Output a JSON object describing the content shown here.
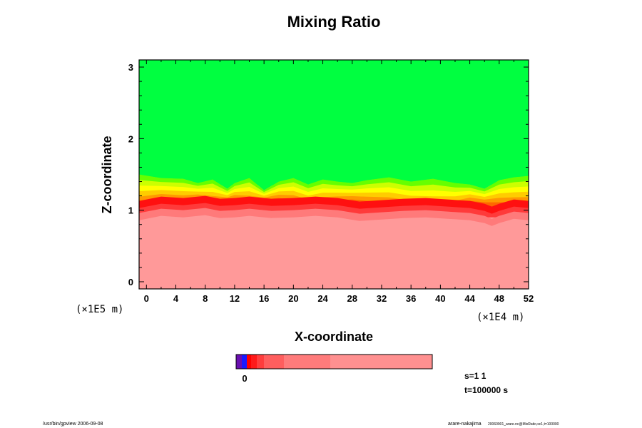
{
  "chart_data": {
    "type": "heatmap",
    "title": "Mixing Ratio",
    "xlabel": "X-coordinate",
    "ylabel": "Z-coordinate",
    "x_unit": "(×1E4 m)",
    "y_unit": "(×1E5 m)",
    "xlim": [
      -1,
      52
    ],
    "ylim": [
      -0.1,
      3.1
    ],
    "x_ticks": [
      "0",
      "4",
      "8",
      "12",
      "16",
      "20",
      "24",
      "28",
      "32",
      "36",
      "40",
      "44",
      "48",
      "52"
    ],
    "y_ticks": [
      "0",
      "1",
      "2",
      "3"
    ],
    "colorbar": {
      "tick_label": "0",
      "colors": [
        "#6a0fb0",
        "#1a1aff",
        "#ff0000",
        "#ff1a1a",
        "#ff3d3d",
        "#ff5e5e",
        "#ff7b7b",
        "#ff9090"
      ]
    },
    "region_colors": {
      "upper": "#00ff40",
      "transition": [
        "#66ff00",
        "#ccff00",
        "#ffff00",
        "#ffcc00",
        "#ff9900",
        "#ff6600"
      ],
      "interface": "#ff1010",
      "lower": "#ff9999"
    },
    "interface_profile": [
      [
        -1,
        1.06
      ],
      [
        2,
        1.12
      ],
      [
        5,
        1.1
      ],
      [
        8,
        1.13
      ],
      [
        10,
        1.09
      ],
      [
        12,
        1.1
      ],
      [
        14,
        1.12
      ],
      [
        17,
        1.09
      ],
      [
        20,
        1.1
      ],
      [
        23,
        1.12
      ],
      [
        26,
        1.1
      ],
      [
        29,
        1.05
      ],
      [
        32,
        1.07
      ],
      [
        35,
        1.09
      ],
      [
        38,
        1.1
      ],
      [
        41,
        1.08
      ],
      [
        44,
        1.06
      ],
      [
        46,
        1.02
      ],
      [
        47,
        0.98
      ],
      [
        48,
        1.02
      ],
      [
        50,
        1.08
      ],
      [
        52,
        1.06
      ]
    ],
    "green_boundary": [
      [
        -1,
        1.5
      ],
      [
        2,
        1.45
      ],
      [
        5,
        1.44
      ],
      [
        7,
        1.38
      ],
      [
        9,
        1.43
      ],
      [
        11,
        1.3
      ],
      [
        12,
        1.38
      ],
      [
        14,
        1.45
      ],
      [
        16,
        1.28
      ],
      [
        18,
        1.4
      ],
      [
        20,
        1.45
      ],
      [
        22,
        1.36
      ],
      [
        24,
        1.43
      ],
      [
        26,
        1.4
      ],
      [
        28,
        1.38
      ],
      [
        30,
        1.42
      ],
      [
        33,
        1.46
      ],
      [
        36,
        1.4
      ],
      [
        39,
        1.44
      ],
      [
        42,
        1.38
      ],
      [
        44,
        1.36
      ],
      [
        46,
        1.3
      ],
      [
        48,
        1.42
      ],
      [
        50,
        1.46
      ],
      [
        52,
        1.48
      ]
    ],
    "info": {
      "s": "s=1 1",
      "t": "t=100000 s"
    },
    "footer_left": "/usr/bin/gpview 2006-09-08",
    "footer_right_name": "arare-nakajima",
    "footer_right_file": "20060901_arare.nc@MixRatio,sc1,t=100000"
  }
}
